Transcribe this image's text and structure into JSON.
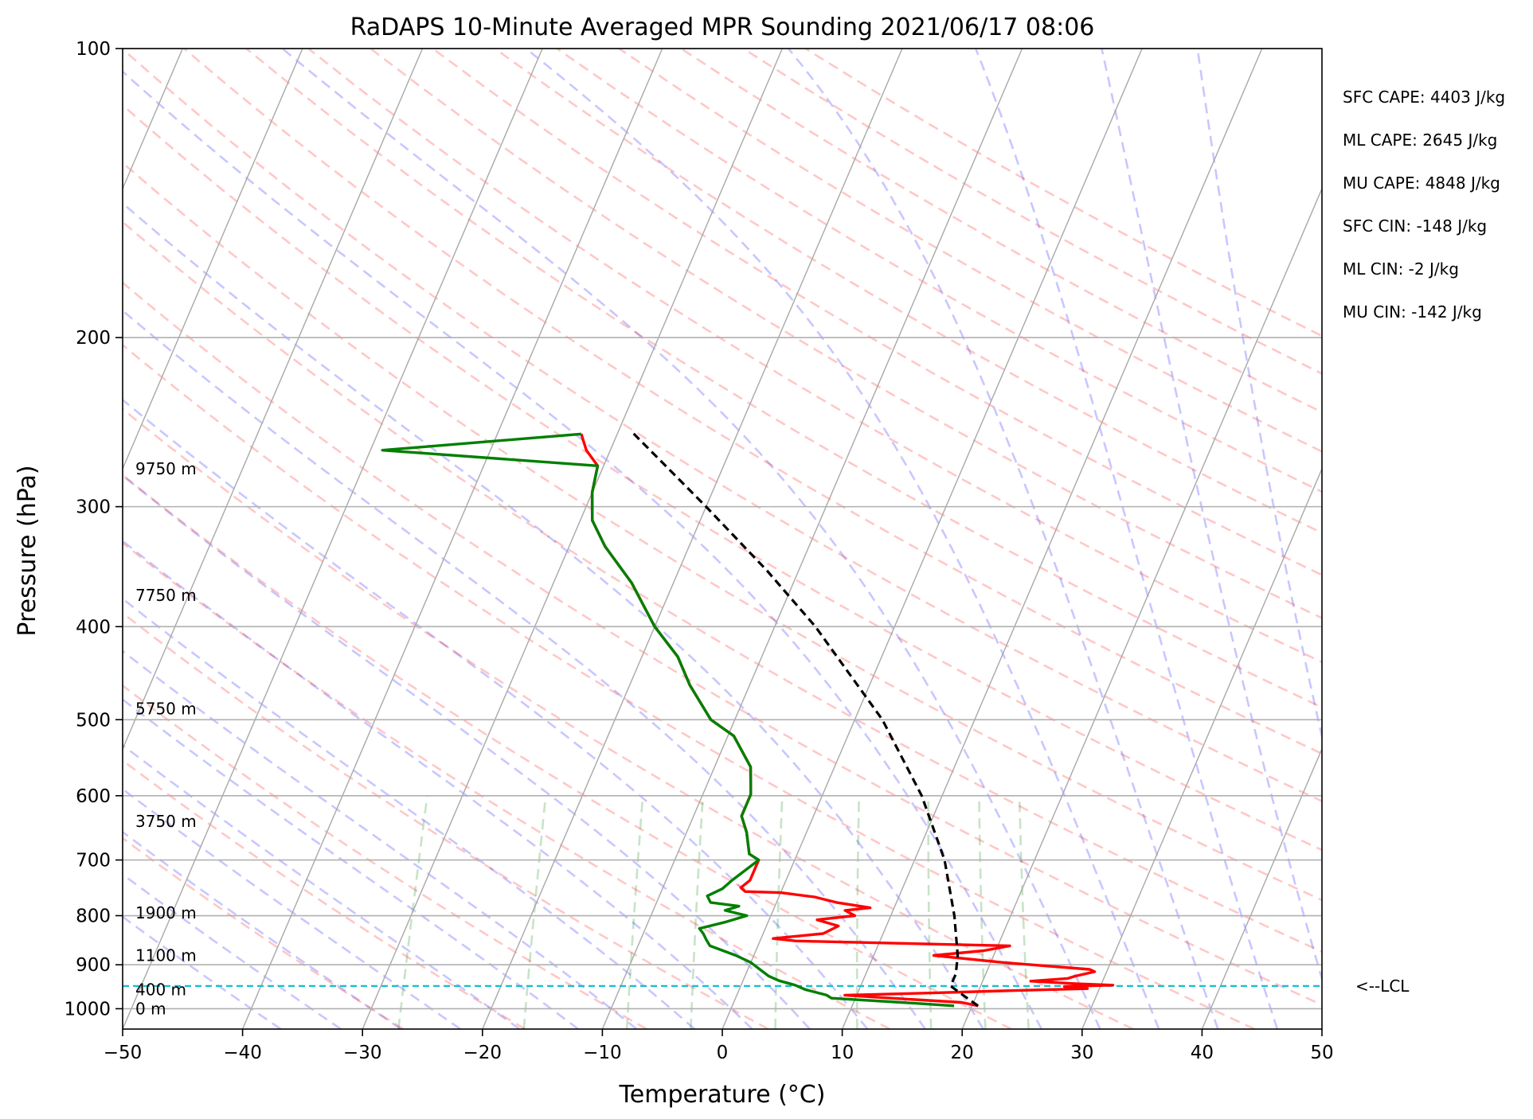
{
  "chart_data": {
    "type": "line",
    "title": "RaDAPS 10-Minute Averaged MPR Sounding 2021/06/17 08:06",
    "xlabel": "Temperature (°C)",
    "ylabel": "Pressure (hPa)",
    "xlim": [
      -50,
      50
    ],
    "ylim": [
      1050,
      100
    ],
    "y_scale": "log",
    "grid": true,
    "x_ticks": [
      "−50",
      "−40",
      "−30",
      "−20",
      "−10",
      "0",
      "10",
      "20",
      "30",
      "40",
      "50"
    ],
    "y_ticks": [
      "100",
      "200",
      "300",
      "400",
      "500",
      "600",
      "700",
      "800",
      "900",
      "1000"
    ],
    "height_labels": [
      {
        "text": "0 m",
        "p": 1000
      },
      {
        "text": "400 m",
        "p": 955
      },
      {
        "text": "1100 m",
        "p": 880
      },
      {
        "text": "1900 m",
        "p": 795
      },
      {
        "text": "3750 m",
        "p": 638
      },
      {
        "text": "5750 m",
        "p": 487
      },
      {
        "text": "7750 m",
        "p": 371
      },
      {
        "text": "9750 m",
        "p": 274
      }
    ],
    "lcl": {
      "p": 947,
      "label": "<--LCL",
      "color": "#17becf"
    },
    "annotations": [
      "SFC CAPE: 4403 J/kg",
      "ML CAPE: 2645 J/kg",
      "MU CAPE: 4848 J/kg",
      "SFC CIN: -148 J/kg",
      "ML CIN: -2 J/kg",
      "MU CIN: -142 J/kg"
    ],
    "series": [
      {
        "color": "#ff0000",
        "points": [
          [
            993,
            20.5
          ],
          [
            985,
            19.0
          ],
          [
            975,
            13.0
          ],
          [
            968,
            9.0
          ],
          [
            963,
            16.0
          ],
          [
            958,
            22.0
          ],
          [
            953,
            29.0
          ],
          [
            948,
            27.0
          ],
          [
            945,
            31.0
          ],
          [
            942,
            28.0
          ],
          [
            936,
            24.0
          ],
          [
            930,
            27.0
          ],
          [
            925,
            27.5
          ],
          [
            915,
            29.0
          ],
          [
            910,
            28.5
          ],
          [
            895,
            21.0
          ],
          [
            880,
            15.0
          ],
          [
            870,
            19.0
          ],
          [
            860,
            21.0
          ],
          [
            850,
            3.0
          ],
          [
            845,
            1.0
          ],
          [
            835,
            5.0
          ],
          [
            820,
            6.0
          ],
          [
            808,
            4.0
          ],
          [
            800,
            7.0
          ],
          [
            790,
            6.0
          ],
          [
            785,
            8.0
          ],
          [
            775,
            5.0
          ],
          [
            765,
            3.0
          ],
          [
            757,
            0.0
          ],
          [
            755,
            -3.0
          ],
          [
            748,
            -3.5
          ],
          [
            735,
            -3.0
          ],
          [
            700,
            -3.0
          ],
          [
            690,
            -4.0
          ],
          [
            655,
            -5.0
          ],
          [
            630,
            -6.0
          ],
          [
            598,
            -6.0
          ],
          [
            560,
            -7.0
          ],
          [
            520,
            -9.5
          ],
          [
            500,
            -12.0
          ],
          [
            460,
            -15.0
          ],
          [
            430,
            -17.0
          ],
          [
            400,
            -20.0
          ],
          [
            360,
            -23.5
          ],
          [
            330,
            -27.0
          ],
          [
            310,
            -29.0
          ],
          [
            290,
            -30.0
          ],
          [
            272,
            -30.5
          ],
          [
            262,
            -32.0
          ],
          [
            252,
            -33.0
          ]
        ]
      },
      {
        "color": "#007f00",
        "points": [
          [
            993,
            18.5
          ],
          [
            985,
            14.0
          ],
          [
            975,
            8.0
          ],
          [
            968,
            7.5
          ],
          [
            955,
            5.5
          ],
          [
            945,
            4.5
          ],
          [
            935,
            3.0
          ],
          [
            925,
            2.0
          ],
          [
            910,
            1.0
          ],
          [
            895,
            0.0
          ],
          [
            880,
            -1.5
          ],
          [
            860,
            -4.0
          ],
          [
            848,
            -4.5
          ],
          [
            835,
            -5.0
          ],
          [
            825,
            -5.5
          ],
          [
            812,
            -3.5
          ],
          [
            800,
            -2.0
          ],
          [
            790,
            -4.0
          ],
          [
            782,
            -3.0
          ],
          [
            775,
            -5.5
          ],
          [
            763,
            -6.0
          ],
          [
            750,
            -5.0
          ],
          [
            735,
            -4.5
          ],
          [
            700,
            -3.0
          ],
          [
            690,
            -4.0
          ],
          [
            655,
            -5.0
          ],
          [
            630,
            -6.0
          ],
          [
            598,
            -6.0
          ],
          [
            560,
            -7.0
          ],
          [
            520,
            -9.5
          ],
          [
            500,
            -12.0
          ],
          [
            460,
            -15.0
          ],
          [
            430,
            -17.0
          ],
          [
            400,
            -20.0
          ],
          [
            360,
            -23.5
          ],
          [
            330,
            -27.0
          ],
          [
            310,
            -29.0
          ],
          [
            290,
            -30.0
          ],
          [
            272,
            -30.5
          ],
          [
            262,
            -49.0
          ],
          [
            252,
            -33.0
          ]
        ]
      },
      {
        "color": "#000000",
        "dashed": true,
        "points": [
          [
            993,
            20.5
          ],
          [
            970,
            19.0
          ],
          [
            947,
            17.5
          ],
          [
            920,
            17.5
          ],
          [
            880,
            17.0
          ],
          [
            800,
            15.3
          ],
          [
            700,
            12.5
          ],
          [
            600,
            8.3
          ],
          [
            500,
            2.3
          ],
          [
            400,
            -6.6
          ],
          [
            350,
            -12.6
          ],
          [
            300,
            -20.0
          ],
          [
            250,
            -29.0
          ]
        ]
      }
    ]
  }
}
